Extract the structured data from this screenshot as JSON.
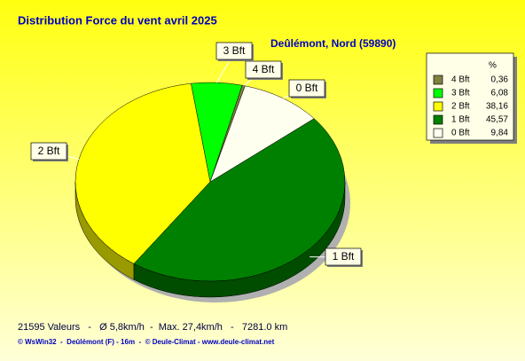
{
  "chart_data": {
    "type": "pie",
    "title": "Distribution Force du vent  avril 2025",
    "subtitle": "Deûlémont, Nord (59890)",
    "categories": [
      "4 Bft",
      "3 Bft",
      "2 Bft",
      "1 Bft",
      "0 Bft"
    ],
    "values": [
      0.36,
      6.08,
      38.16,
      45.57,
      9.84
    ],
    "value_labels": [
      "0,36",
      "6,08",
      "38,16",
      "45,57",
      "9,84"
    ],
    "colors": [
      "#808040",
      "#00ff00",
      "#ffff00",
      "#008000",
      "#fffff0"
    ],
    "legend_title": "%",
    "legend": "upper right",
    "annotations": [
      "21595 Valeurs   -   Ø 5,8km/h  -  Max. 27,4km/h   -   7281.0 km",
      "© WsWin32  -  Deûlémont (F) - 16m  -  © Deule-Climat - www.deule-climat.net"
    ]
  }
}
